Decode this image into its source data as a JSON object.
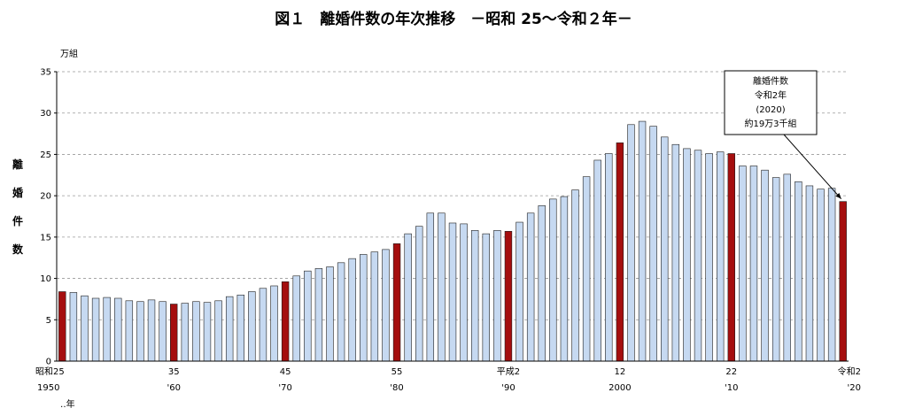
{
  "chart_data": {
    "type": "bar",
    "title": "図１　離婚件数の年次推移　－昭和 25～令和２年－",
    "unit_label": "万組",
    "ylabel_chars": [
      "離",
      "婚",
      "件",
      "数"
    ],
    "xlabel": "年",
    "ylim": [
      0,
      35
    ],
    "yticks": [
      "0",
      "5",
      "10",
      "15",
      "20",
      "25",
      "30",
      "35"
    ],
    "grid": true,
    "x": [
      1950,
      1951,
      1952,
      1953,
      1954,
      1955,
      1956,
      1957,
      1958,
      1959,
      1960,
      1961,
      1962,
      1963,
      1964,
      1965,
      1966,
      1967,
      1968,
      1969,
      1970,
      1971,
      1972,
      1973,
      1974,
      1975,
      1976,
      1977,
      1978,
      1979,
      1980,
      1981,
      1982,
      1983,
      1984,
      1985,
      1986,
      1987,
      1988,
      1989,
      1990,
      1991,
      1992,
      1993,
      1994,
      1995,
      1996,
      1997,
      1998,
      1999,
      2000,
      2001,
      2002,
      2003,
      2004,
      2005,
      2006,
      2007,
      2008,
      2009,
      2010,
      2011,
      2012,
      2013,
      2014,
      2015,
      2016,
      2017,
      2018,
      2019,
      2020
    ],
    "values": [
      8.4,
      8.3,
      7.9,
      7.6,
      7.7,
      7.6,
      7.3,
      7.2,
      7.4,
      7.2,
      6.9,
      7.0,
      7.2,
      7.1,
      7.3,
      7.8,
      8.0,
      8.4,
      8.8,
      9.1,
      9.6,
      10.3,
      10.9,
      11.2,
      11.4,
      11.9,
      12.4,
      12.9,
      13.2,
      13.5,
      14.2,
      15.4,
      16.3,
      17.9,
      17.9,
      16.7,
      16.6,
      15.8,
      15.4,
      15.8,
      15.7,
      16.8,
      17.9,
      18.8,
      19.6,
      19.9,
      20.7,
      22.3,
      24.3,
      25.1,
      26.4,
      28.6,
      29.0,
      28.4,
      27.1,
      26.2,
      25.7,
      25.5,
      25.1,
      25.3,
      25.1,
      23.6,
      23.6,
      23.1,
      22.2,
      22.6,
      21.7,
      21.2,
      20.8,
      20.9,
      19.3
    ],
    "highlight_years": [
      1950,
      1960,
      1970,
      1980,
      1990,
      2000,
      2010,
      2020
    ],
    "colors": {
      "normal": "#c6d9f1",
      "highlight": "#a50e0e",
      "outline": "#1f1f1f",
      "grid": "#999999"
    },
    "xticks": [
      {
        "year": 1950,
        "line1": "昭和25",
        "line2": "1950"
      },
      {
        "year": 1960,
        "line1": "35",
        "line2": "'60"
      },
      {
        "year": 1970,
        "line1": "45",
        "line2": "'70"
      },
      {
        "year": 1980,
        "line1": "55",
        "line2": "'80"
      },
      {
        "year": 1990,
        "line1": "平成2",
        "line2": "'90"
      },
      {
        "year": 2000,
        "line1": "12",
        "line2": "2000"
      },
      {
        "year": 2010,
        "line1": "22",
        "line2": "'10"
      },
      {
        "year": 2020,
        "line1": "令和2",
        "line2": "'20"
      }
    ],
    "x_suffix": "‥年",
    "annotation": {
      "lines": [
        "離婚件数",
        "令和2年",
        "(2020)",
        "約19万3千組"
      ],
      "target_year": 2020
    }
  }
}
